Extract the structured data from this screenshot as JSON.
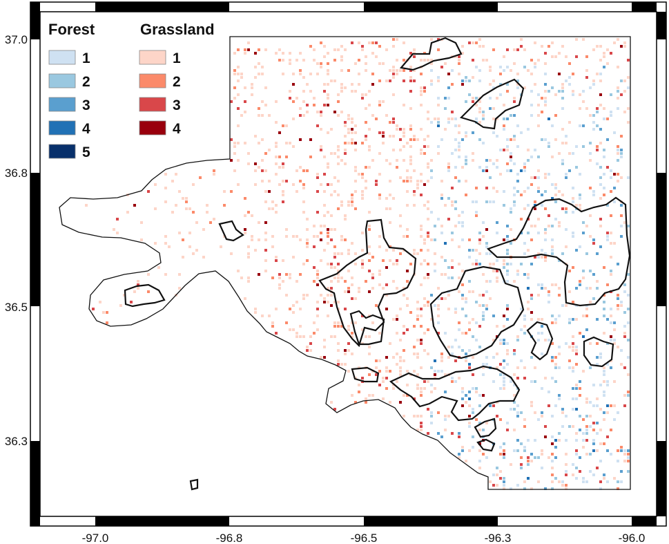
{
  "axes": {
    "x_ticks": [
      "-97.0",
      "-96.8",
      "-96.5",
      "-96.3",
      "-96.0"
    ],
    "y_ticks": [
      "37.0",
      "36.8",
      "36.5",
      "36.3"
    ]
  },
  "legend": {
    "forest": {
      "title": "Forest",
      "items": [
        {
          "label": "1",
          "color": "#cfe1f2"
        },
        {
          "label": "2",
          "color": "#9ac8e0"
        },
        {
          "label": "3",
          "color": "#5a9fcf"
        },
        {
          "label": "4",
          "color": "#2171b5"
        },
        {
          "label": "5",
          "color": "#08306b"
        }
      ]
    },
    "grassland": {
      "title": "Grassland",
      "items": [
        {
          "label": "1",
          "color": "#fdd5c8"
        },
        {
          "label": "2",
          "color": "#fb8a6a"
        },
        {
          "label": "3",
          "color": "#d9474a"
        },
        {
          "label": "4",
          "color": "#99000d"
        }
      ]
    }
  },
  "colors": {
    "frame_black": "#000000",
    "boundary": "#111111"
  }
}
